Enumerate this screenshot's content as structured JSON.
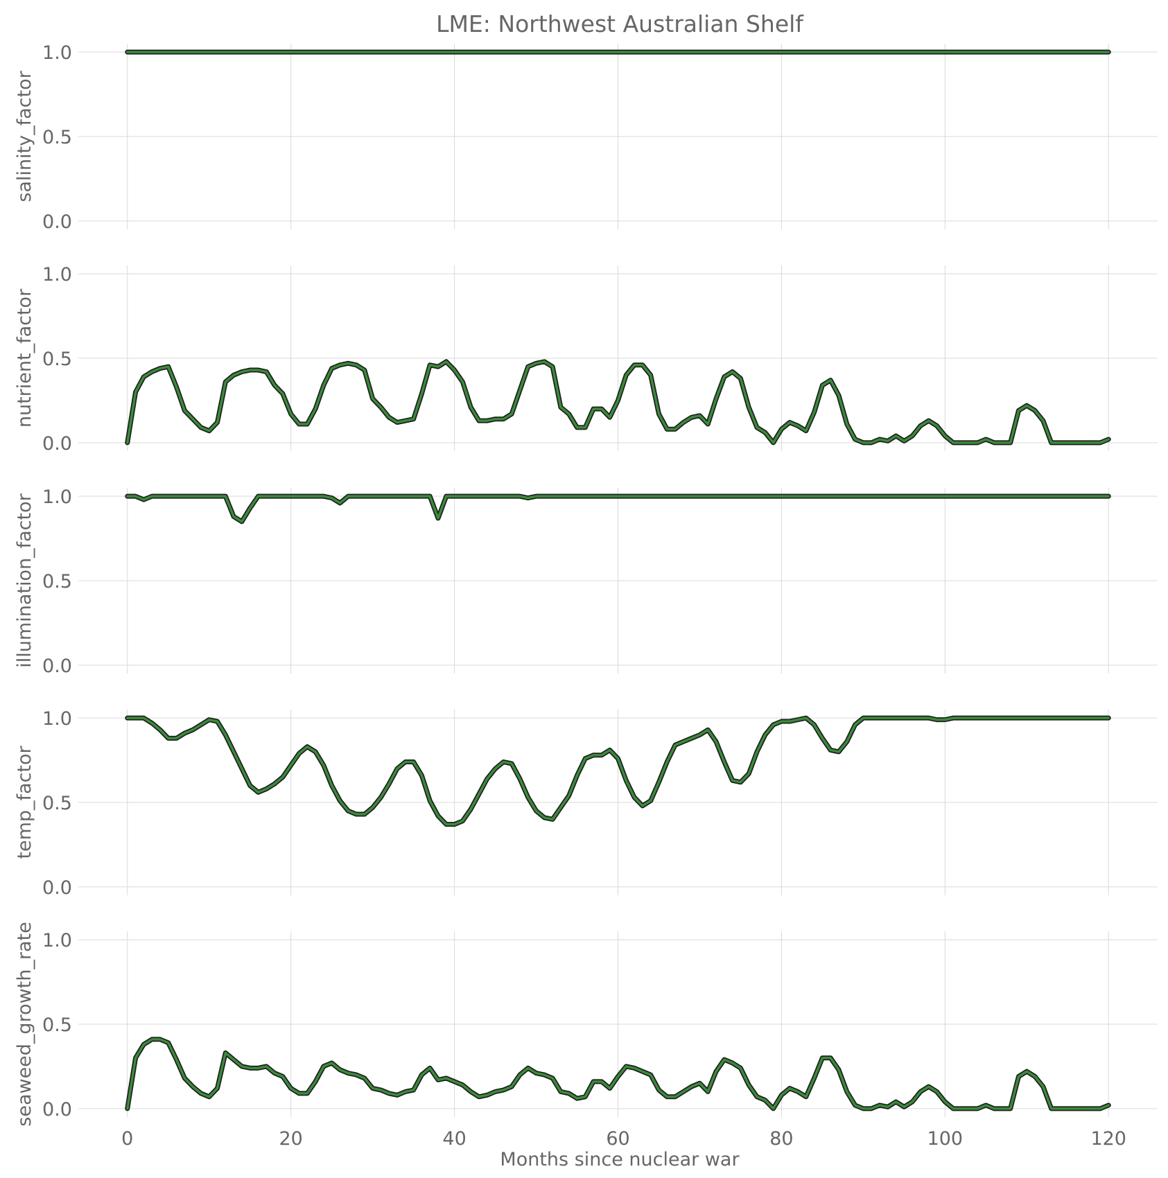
{
  "chart_data": {
    "type": "line",
    "title": "LME: Northwest Australian Shelf",
    "xlabel": "Months since nuclear war",
    "xlim": [
      -6,
      126
    ],
    "xticks": [
      0,
      20,
      40,
      60,
      80,
      100,
      120
    ],
    "x_tick_labels": [
      "0",
      "20",
      "40",
      "60",
      "80",
      "100",
      "120"
    ],
    "ylim": [
      -0.05,
      1.05
    ],
    "yticks": [
      0.0,
      0.5,
      1.0
    ],
    "y_tick_labels": [
      "0.0",
      "0.5",
      "1.0"
    ],
    "grid": true,
    "line_color": "#3b8b3b",
    "outline_color": "#1f1f1f",
    "x_start": 0,
    "x_step": 1,
    "panels": [
      {
        "ylabel": "salinity_factor",
        "values": [
          1,
          1,
          1,
          1,
          1,
          1,
          1,
          1,
          1,
          1,
          1,
          1,
          1,
          1,
          1,
          1,
          1,
          1,
          1,
          1,
          1,
          1,
          1,
          1,
          1,
          1,
          1,
          1,
          1,
          1,
          1,
          1,
          1,
          1,
          1,
          1,
          1,
          1,
          1,
          1,
          1,
          1,
          1,
          1,
          1,
          1,
          1,
          1,
          1,
          1,
          1,
          1,
          1,
          1,
          1,
          1,
          1,
          1,
          1,
          1,
          1,
          1,
          1,
          1,
          1,
          1,
          1,
          1,
          1,
          1,
          1,
          1,
          1,
          1,
          1,
          1,
          1,
          1,
          1,
          1,
          1,
          1,
          1,
          1,
          1,
          1,
          1,
          1,
          1,
          1,
          1,
          1,
          1,
          1,
          1,
          1,
          1,
          1,
          1,
          1,
          1,
          1,
          1,
          1,
          1,
          1,
          1,
          1,
          1,
          1,
          1,
          1,
          1,
          1,
          1,
          1,
          1,
          1,
          1,
          1,
          1
        ]
      },
      {
        "ylabel": "nutrient_factor",
        "values": [
          0.0,
          0.3,
          0.39,
          0.42,
          0.44,
          0.45,
          0.33,
          0.19,
          0.14,
          0.09,
          0.07,
          0.12,
          0.36,
          0.4,
          0.42,
          0.43,
          0.43,
          0.42,
          0.34,
          0.29,
          0.17,
          0.11,
          0.11,
          0.2,
          0.34,
          0.44,
          0.46,
          0.47,
          0.46,
          0.43,
          0.26,
          0.21,
          0.15,
          0.12,
          0.13,
          0.14,
          0.29,
          0.46,
          0.45,
          0.48,
          0.43,
          0.36,
          0.21,
          0.13,
          0.13,
          0.14,
          0.14,
          0.17,
          0.31,
          0.45,
          0.47,
          0.48,
          0.45,
          0.21,
          0.17,
          0.09,
          0.09,
          0.2,
          0.2,
          0.15,
          0.25,
          0.4,
          0.46,
          0.46,
          0.4,
          0.17,
          0.08,
          0.08,
          0.12,
          0.15,
          0.16,
          0.11,
          0.26,
          0.39,
          0.42,
          0.38,
          0.21,
          0.09,
          0.06,
          0.0,
          0.08,
          0.12,
          0.1,
          0.07,
          0.18,
          0.34,
          0.37,
          0.28,
          0.11,
          0.02,
          0.0,
          0.0,
          0.02,
          0.01,
          0.04,
          0.01,
          0.04,
          0.1,
          0.13,
          0.1,
          0.04,
          0.0,
          0.0,
          0.0,
          0.0,
          0.02,
          0.0,
          0.0,
          0.0,
          0.19,
          0.22,
          0.19,
          0.13,
          0.0,
          0.0,
          0.0,
          0.0,
          0.0,
          0.0,
          0.0,
          0.02
        ]
      },
      {
        "ylabel": "illumination_factor",
        "values": [
          1.0,
          1.0,
          0.98,
          1.0,
          1.0,
          1.0,
          1.0,
          1.0,
          1.0,
          1.0,
          1.0,
          1.0,
          1.0,
          0.88,
          0.85,
          0.93,
          1.0,
          1.0,
          1.0,
          1.0,
          1.0,
          1.0,
          1.0,
          1.0,
          1.0,
          0.99,
          0.96,
          1.0,
          1.0,
          1.0,
          1.0,
          1.0,
          1.0,
          1.0,
          1.0,
          1.0,
          1.0,
          1.0,
          0.87,
          1.0,
          1.0,
          1.0,
          1.0,
          1.0,
          1.0,
          1.0,
          1.0,
          1.0,
          1.0,
          0.99,
          1.0,
          1.0,
          1.0,
          1.0,
          1.0,
          1.0,
          1.0,
          1.0,
          1.0,
          1.0,
          1.0,
          1.0,
          1.0,
          1.0,
          1.0,
          1.0,
          1.0,
          1.0,
          1.0,
          1.0,
          1.0,
          1.0,
          1.0,
          1.0,
          1.0,
          1.0,
          1.0,
          1.0,
          1.0,
          1.0,
          1.0,
          1.0,
          1.0,
          1.0,
          1.0,
          1.0,
          1.0,
          1.0,
          1.0,
          1.0,
          1.0,
          1.0,
          1.0,
          1.0,
          1.0,
          1.0,
          1.0,
          1.0,
          1.0,
          1.0,
          1.0,
          1.0,
          1.0,
          1.0,
          1.0,
          1.0,
          1.0,
          1.0,
          1.0,
          1.0,
          1.0,
          1.0,
          1.0,
          1.0,
          1.0,
          1.0,
          1.0,
          1.0,
          1.0,
          1.0,
          1.0
        ]
      },
      {
        "ylabel": "temp_factor",
        "values": [
          1.0,
          1.0,
          1.0,
          0.97,
          0.93,
          0.88,
          0.88,
          0.91,
          0.93,
          0.96,
          0.99,
          0.98,
          0.9,
          0.8,
          0.7,
          0.6,
          0.56,
          0.58,
          0.61,
          0.65,
          0.72,
          0.79,
          0.83,
          0.8,
          0.72,
          0.6,
          0.51,
          0.45,
          0.43,
          0.43,
          0.47,
          0.53,
          0.61,
          0.7,
          0.74,
          0.74,
          0.66,
          0.51,
          0.42,
          0.37,
          0.37,
          0.39,
          0.46,
          0.55,
          0.64,
          0.7,
          0.74,
          0.73,
          0.64,
          0.53,
          0.45,
          0.41,
          0.4,
          0.47,
          0.54,
          0.66,
          0.76,
          0.78,
          0.78,
          0.81,
          0.76,
          0.63,
          0.53,
          0.48,
          0.51,
          0.62,
          0.74,
          0.84,
          0.86,
          0.88,
          0.9,
          0.93,
          0.86,
          0.74,
          0.63,
          0.62,
          0.67,
          0.8,
          0.9,
          0.96,
          0.98,
          0.98,
          0.99,
          1.0,
          0.96,
          0.88,
          0.81,
          0.8,
          0.86,
          0.96,
          1.0,
          1.0,
          1.0,
          1.0,
          1.0,
          1.0,
          1.0,
          1.0,
          1.0,
          0.99,
          0.99,
          1.0,
          1.0,
          1.0,
          1.0,
          1.0,
          1.0,
          1.0,
          1.0,
          1.0,
          1.0,
          1.0,
          1.0,
          1.0,
          1.0,
          1.0,
          1.0,
          1.0,
          1.0,
          1.0,
          1.0
        ]
      },
      {
        "ylabel": "seaweed_growth_rate",
        "values": [
          0.0,
          0.3,
          0.38,
          0.41,
          0.41,
          0.39,
          0.29,
          0.18,
          0.13,
          0.09,
          0.07,
          0.12,
          0.33,
          0.29,
          0.25,
          0.24,
          0.24,
          0.25,
          0.21,
          0.19,
          0.12,
          0.09,
          0.09,
          0.16,
          0.25,
          0.27,
          0.23,
          0.21,
          0.2,
          0.18,
          0.12,
          0.11,
          0.09,
          0.08,
          0.1,
          0.11,
          0.2,
          0.24,
          0.17,
          0.18,
          0.16,
          0.14,
          0.1,
          0.07,
          0.08,
          0.1,
          0.11,
          0.13,
          0.2,
          0.24,
          0.21,
          0.2,
          0.18,
          0.1,
          0.09,
          0.06,
          0.07,
          0.16,
          0.16,
          0.12,
          0.19,
          0.25,
          0.24,
          0.22,
          0.2,
          0.11,
          0.07,
          0.07,
          0.1,
          0.13,
          0.15,
          0.1,
          0.22,
          0.29,
          0.27,
          0.24,
          0.14,
          0.07,
          0.05,
          0.0,
          0.08,
          0.12,
          0.1,
          0.07,
          0.18,
          0.3,
          0.3,
          0.23,
          0.1,
          0.02,
          0.0,
          0.0,
          0.02,
          0.01,
          0.04,
          0.01,
          0.04,
          0.1,
          0.13,
          0.1,
          0.04,
          0.0,
          0.0,
          0.0,
          0.0,
          0.02,
          0.0,
          0.0,
          0.0,
          0.19,
          0.22,
          0.19,
          0.13,
          0.0,
          0.0,
          0.0,
          0.0,
          0.0,
          0.0,
          0.0,
          0.02
        ]
      }
    ]
  }
}
